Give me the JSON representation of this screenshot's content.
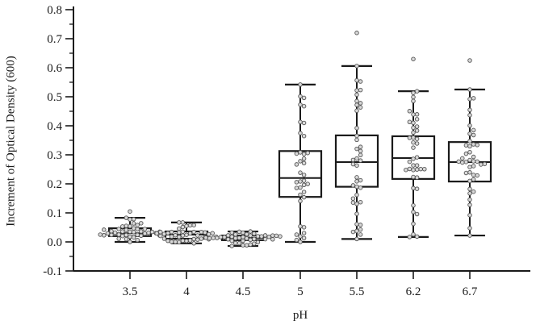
{
  "chart_data": {
    "type": "box",
    "title": "",
    "xlabel": "pH",
    "ylabel": "Increment of Optical Density (600)",
    "ylim": [
      -0.1,
      0.8
    ],
    "yticks": [
      "-0.1",
      "0.0",
      "0.1",
      "0.2",
      "0.3",
      "0.4",
      "0.5",
      "0.6",
      "0.7",
      "0.8"
    ],
    "categories": [
      "3.5",
      "4",
      "4.5",
      "5",
      "5.5",
      "6.2",
      "6.7"
    ],
    "grid": false,
    "legend": null,
    "series": [
      {
        "category": "3.5",
        "whisker_low": 0.0,
        "q1": 0.02,
        "median": 0.03,
        "q3": 0.047,
        "whisker_high": 0.083,
        "outliers": [
          0.105
        ],
        "n_points": 40
      },
      {
        "category": "4",
        "whisker_low": -0.005,
        "q1": 0.011,
        "median": 0.025,
        "q3": 0.036,
        "whisker_high": 0.067,
        "outliers": [],
        "n_points": 40
      },
      {
        "category": "4.5",
        "whisker_low": -0.014,
        "q1": 0.006,
        "median": 0.014,
        "q3": 0.022,
        "whisker_high": 0.036,
        "outliers": [],
        "n_points": 40
      },
      {
        "category": "5",
        "whisker_low": 0.0,
        "q1": 0.155,
        "median": 0.22,
        "q3": 0.313,
        "whisker_high": 0.542,
        "outliers": [],
        "n_points": 36
      },
      {
        "category": "5.5",
        "whisker_low": 0.01,
        "q1": 0.19,
        "median": 0.275,
        "q3": 0.367,
        "whisker_high": 0.606,
        "outliers": [
          0.72
        ],
        "n_points": 40
      },
      {
        "category": "6.2",
        "whisker_low": 0.017,
        "q1": 0.217,
        "median": 0.289,
        "q3": 0.364,
        "whisker_high": 0.519,
        "outliers": [
          0.63
        ],
        "n_points": 40
      },
      {
        "category": "6.7",
        "whisker_low": 0.022,
        "q1": 0.208,
        "median": 0.275,
        "q3": 0.344,
        "whisker_high": 0.525,
        "outliers": [
          0.625
        ],
        "n_points": 40
      }
    ],
    "style": {
      "box_stroke": "#1a1a1a",
      "point_fill": "#d9d9d9",
      "point_stroke": "#555555"
    }
  }
}
